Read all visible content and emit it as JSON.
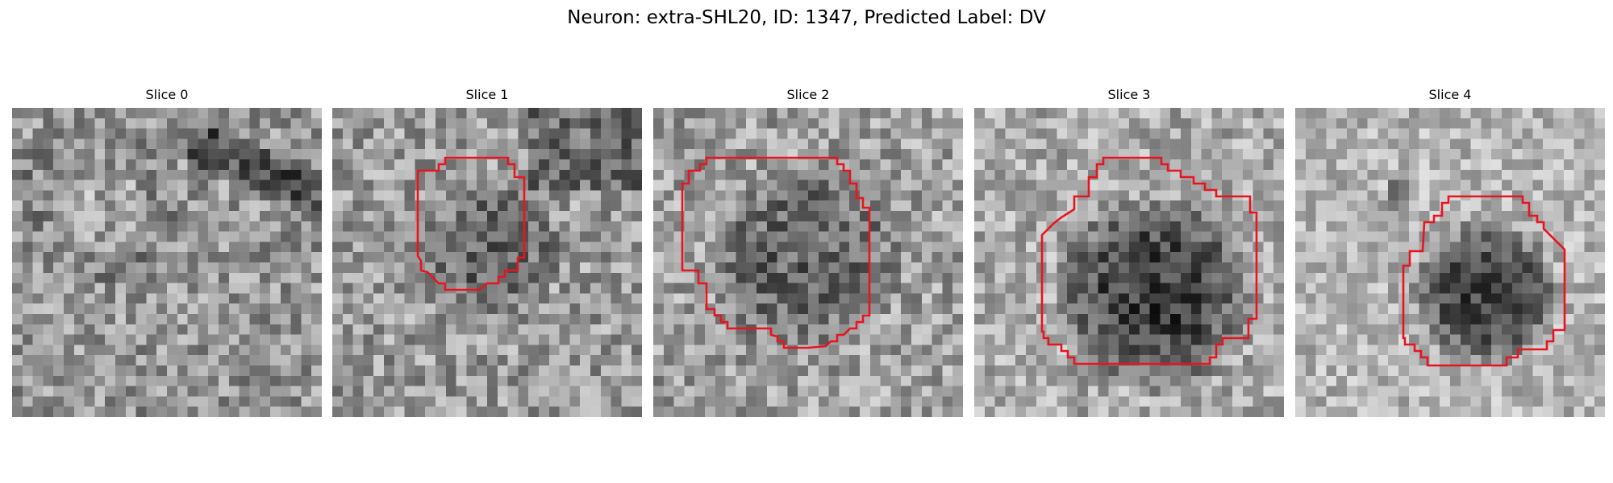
{
  "figure": {
    "title": "Neuron: extra-SHL20, ID: 1347, Predicted Label: DV"
  },
  "slices": [
    {
      "title": "Slice 0",
      "has_outline": false
    },
    {
      "title": "Slice 1",
      "has_outline": true
    },
    {
      "title": "Slice 2",
      "has_outline": true
    },
    {
      "title": "Slice 3",
      "has_outline": true
    },
    {
      "title": "Slice 4",
      "has_outline": true
    }
  ],
  "colors": {
    "outline": "#e8141e",
    "background": "#ffffff"
  }
}
